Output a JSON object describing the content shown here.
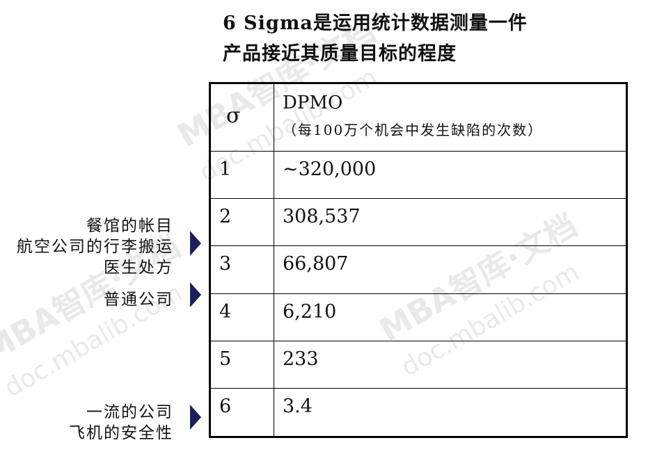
{
  "title": {
    "line1": "6 Sigma是运用统计数据测量一件",
    "line2": "产品接近其质量目标的程度"
  },
  "watermark": {
    "text": "MBA智库·文档",
    "sub": "doc.mbalib.com"
  },
  "table": {
    "header": {
      "col1": "σ",
      "col2_title": "DPMO",
      "col2_sub": "（每100万个机会中发生缺陷的次数）"
    },
    "rows": [
      {
        "sigma": "1",
        "dpmo": "~320,000"
      },
      {
        "sigma": "2",
        "dpmo": "308,537"
      },
      {
        "sigma": "3",
        "dpmo": "66,807"
      },
      {
        "sigma": "4",
        "dpmo": "6,210"
      },
      {
        "sigma": "5",
        "dpmo": "233"
      },
      {
        "sigma": "6",
        "dpmo": "3.4"
      }
    ]
  },
  "side_labels": [
    {
      "lines": [
        "餐馆的帐目",
        "航空公司的行李搬运",
        "医生处方"
      ]
    },
    {
      "lines": [
        "普通公司"
      ]
    },
    {
      "lines": [
        "一流的公司",
        "飞机的安全性"
      ]
    }
  ]
}
